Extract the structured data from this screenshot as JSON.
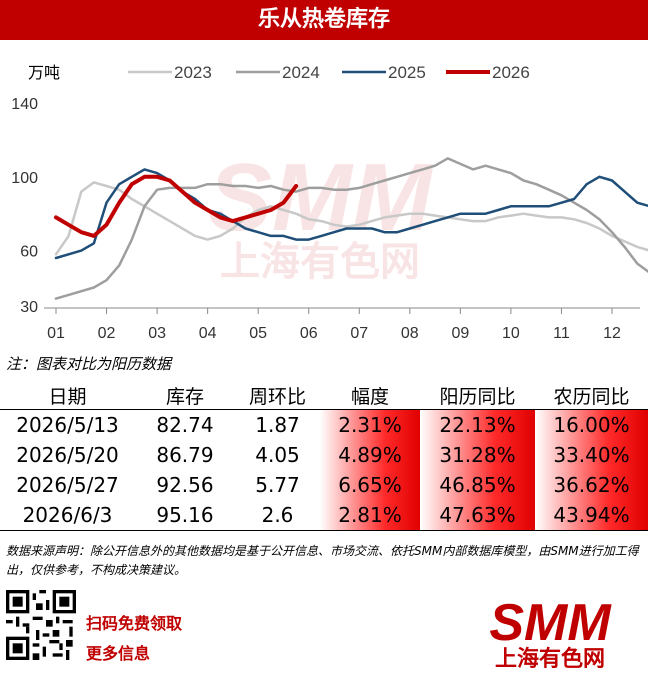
{
  "title": "乐从热卷库存",
  "chart_data": {
    "type": "line",
    "ylabel": "万吨",
    "yticks": [
      30,
      60,
      100,
      140
    ],
    "ylim": [
      30,
      140
    ],
    "categories": [
      "01",
      "02",
      "03",
      "04",
      "05",
      "06",
      "07",
      "08",
      "09",
      "10",
      "11",
      "12"
    ],
    "grid": false,
    "legend_position": "top",
    "series": [
      {
        "name": "2023",
        "color": "#c8c8c8",
        "width": 2.5,
        "x": [
          1,
          1.25,
          1.5,
          1.75,
          2,
          2.25,
          2.5,
          2.75,
          3,
          3.25,
          3.5,
          3.75,
          4,
          4.25,
          4.5,
          4.75,
          5,
          5.25,
          5.5,
          5.75,
          6,
          6.25,
          6.5,
          6.75,
          7,
          7.25,
          7.5,
          7.75,
          8,
          8.25,
          8.5,
          8.75,
          9,
          9.25,
          9.5,
          9.75,
          10,
          10.25,
          10.5,
          10.75,
          11,
          11.25,
          11.5,
          11.75,
          12,
          12.25,
          12.5,
          12.75
        ],
        "y": [
          58,
          68,
          92,
          97,
          95,
          93,
          88,
          84,
          80,
          76,
          72,
          68,
          66,
          68,
          72,
          78,
          82,
          84,
          82,
          80,
          77,
          76,
          74,
          73,
          74,
          76,
          78,
          79,
          80,
          80,
          79,
          78,
          77,
          76,
          76,
          78,
          79,
          80,
          79,
          78,
          78,
          77,
          75,
          72,
          68,
          65,
          62,
          60
        ]
      },
      {
        "name": "2024",
        "color": "#9e9e9e",
        "width": 2.5,
        "x": [
          1,
          1.25,
          1.5,
          1.75,
          2,
          2.25,
          2.5,
          2.75,
          3,
          3.25,
          3.5,
          3.75,
          4,
          4.25,
          4.5,
          4.75,
          5,
          5.25,
          5.5,
          5.75,
          6,
          6.25,
          6.5,
          6.75,
          7,
          7.25,
          7.5,
          7.75,
          8,
          8.25,
          8.5,
          8.75,
          9,
          9.25,
          9.5,
          9.75,
          10,
          10.25,
          10.5,
          10.75,
          11,
          11.25,
          11.5,
          11.75,
          12,
          12.25,
          12.5,
          12.75
        ],
        "y": [
          34,
          36,
          38,
          40,
          44,
          52,
          66,
          84,
          93,
          94,
          94,
          94,
          96,
          96,
          95,
          95,
          94,
          95,
          93,
          92,
          94,
          94,
          93,
          93,
          94,
          96,
          98,
          100,
          102,
          104,
          106,
          110,
          107,
          104,
          106,
          104,
          102,
          98,
          96,
          93,
          90,
          86,
          82,
          77,
          70,
          62,
          53,
          48
        ]
      },
      {
        "name": "2025",
        "color": "#1f4e79",
        "width": 2.5,
        "x": [
          1,
          1.25,
          1.5,
          1.75,
          2,
          2.25,
          2.5,
          2.75,
          3,
          3.25,
          3.5,
          3.75,
          4,
          4.25,
          4.5,
          4.75,
          5,
          5.25,
          5.5,
          5.75,
          6,
          6.25,
          6.5,
          6.75,
          7,
          7.25,
          7.5,
          7.75,
          8,
          8.25,
          8.5,
          8.75,
          9,
          9.25,
          9.5,
          9.75,
          10,
          10.25,
          10.5,
          10.75,
          11,
          11.25,
          11.5,
          11.75,
          12,
          12.25,
          12.5,
          12.75
        ],
        "y": [
          56,
          58,
          60,
          64,
          86,
          96,
          100,
          104,
          102,
          98,
          92,
          88,
          82,
          80,
          76,
          72,
          70,
          68,
          68,
          66,
          66,
          68,
          70,
          72,
          72,
          72,
          70,
          70,
          72,
          74,
          76,
          78,
          80,
          80,
          80,
          82,
          84,
          84,
          84,
          84,
          86,
          88,
          96,
          100,
          98,
          92,
          86,
          84
        ]
      },
      {
        "name": "2026",
        "color": "#c00000",
        "width": 4,
        "x": [
          1,
          1.25,
          1.5,
          1.75,
          2,
          2.25,
          2.5,
          2.75,
          3,
          3.25,
          3.5,
          3.75,
          4,
          4.25,
          4.5,
          4.75,
          5,
          5.25,
          5.5,
          5.75
        ],
        "y": [
          78,
          74,
          70,
          68,
          74,
          86,
          96,
          100,
          100,
          98,
          92,
          86,
          82,
          78,
          76,
          78,
          80,
          82,
          86,
          95
        ]
      }
    ]
  },
  "note": "注：图表对比为阳历数据",
  "table": {
    "headers": [
      "日期",
      "库存",
      "周环比",
      "幅度",
      "阳历同比",
      "农历同比"
    ],
    "rows": [
      [
        "2026/5/13",
        "82.74",
        "1.87",
        "2.31%",
        "22.13%",
        "16.00%"
      ],
      [
        "2026/5/20",
        "86.79",
        "4.05",
        "4.89%",
        "31.28%",
        "33.40%"
      ],
      [
        "2026/5/27",
        "92.56",
        "5.77",
        "6.65%",
        "46.85%",
        "36.62%"
      ],
      [
        "2026/6/3",
        "95.16",
        "2.6",
        "2.81%",
        "47.63%",
        "43.94%"
      ]
    ]
  },
  "source": "数据来源声明：除公开信息外的其他数据均是基于公开信息、市场交流、依托SMM内部数据库模型，由SMM进行加工得出，仅供参考，不构成决策建议。",
  "footer": {
    "scan_line1": "扫码免费领取",
    "scan_line2": "更多信息",
    "logo_text": "SMM",
    "logo_sub": "上海有色网"
  },
  "colors": {
    "brand": "#c00000"
  }
}
